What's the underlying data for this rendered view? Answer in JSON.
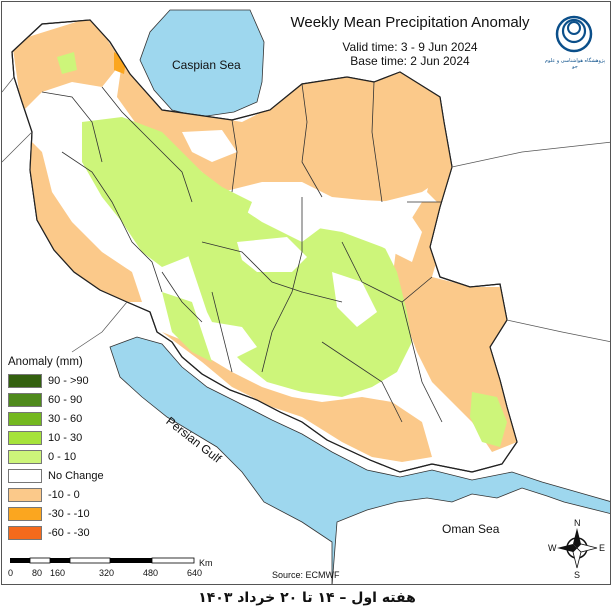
{
  "header": {
    "title": "Weekly Mean Precipitation Anomaly",
    "valid_time": "Valid time: 3 - 9 Jun 2024",
    "base_time": "Base time: 2 Jun 2024"
  },
  "logo": {
    "text": "پژوهشگاه هواشناسی و علوم جو",
    "icon": "irimo-logo-icon"
  },
  "legend": {
    "title": "Anomaly (mm)",
    "items": [
      {
        "label": "90 - >90",
        "color": "#33600f"
      },
      {
        "label": "60 - 90",
        "color": "#4f8a1c"
      },
      {
        "label": "30 - 60",
        "color": "#74b81f"
      },
      {
        "label": "10 - 30",
        "color": "#a6e33a"
      },
      {
        "label": "0 - 10",
        "color": "#cdf57a"
      },
      {
        "label": "No Change",
        "color": "#ffffff"
      },
      {
        "label": "-10 - 0",
        "color": "#fbc98a"
      },
      {
        "label": "-30 - -10",
        "color": "#fba61f"
      },
      {
        "label": "-60 - -30",
        "color": "#f56a1c"
      }
    ]
  },
  "labels": {
    "caspian": "Caspian Sea",
    "persian_gulf": "Persian Gulf",
    "oman_sea": "Oman Sea"
  },
  "scale": {
    "unit": "Km",
    "ticks": [
      "0",
      "80",
      "160",
      "320",
      "480",
      "640"
    ]
  },
  "compass": {
    "n": "N",
    "s": "S",
    "e": "E",
    "w": "W"
  },
  "source": "Source: ECMWF",
  "footer": "هفته اول – ۱۴ تا ۲۰ خرداد ۱۴۰۳",
  "colors": {
    "sea": "#9ed7ee",
    "land": "#ffffff",
    "border": "#333333"
  }
}
